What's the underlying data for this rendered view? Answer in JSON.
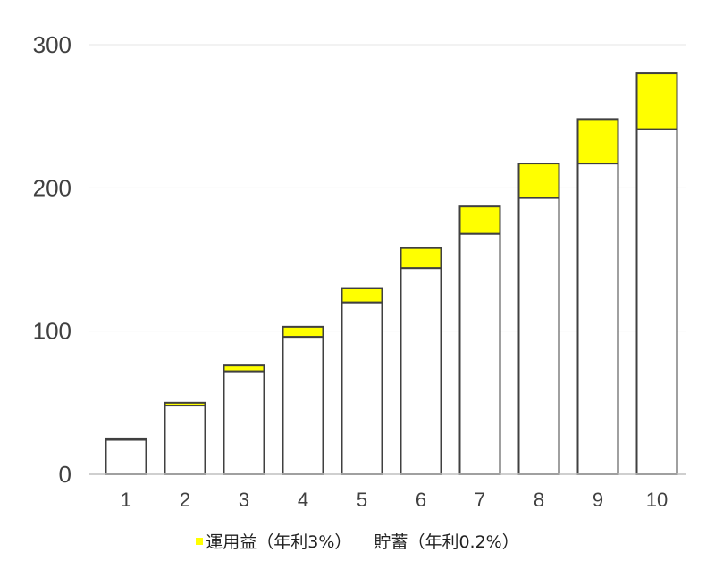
{
  "chart_data": {
    "type": "bar",
    "stacked": true,
    "categories": [
      "1",
      "2",
      "3",
      "4",
      "5",
      "6",
      "7",
      "8",
      "9",
      "10"
    ],
    "series": [
      {
        "name": "貯蓄（年利0.2%）",
        "color": "#ffffff",
        "values": [
          24,
          48,
          72,
          96,
          120,
          144,
          168,
          193,
          217,
          241
        ]
      },
      {
        "name": "運用益（年利3%）",
        "color": "#ffff00",
        "values": [
          1,
          2,
          4,
          7,
          10,
          14,
          19,
          24,
          31,
          39
        ]
      }
    ],
    "title": "",
    "xlabel": "",
    "ylabel": "",
    "ylim": [
      0,
      300
    ],
    "yticks": [
      "0",
      "100",
      "200",
      "300"
    ],
    "grid": true,
    "legend_position": "bottom"
  }
}
